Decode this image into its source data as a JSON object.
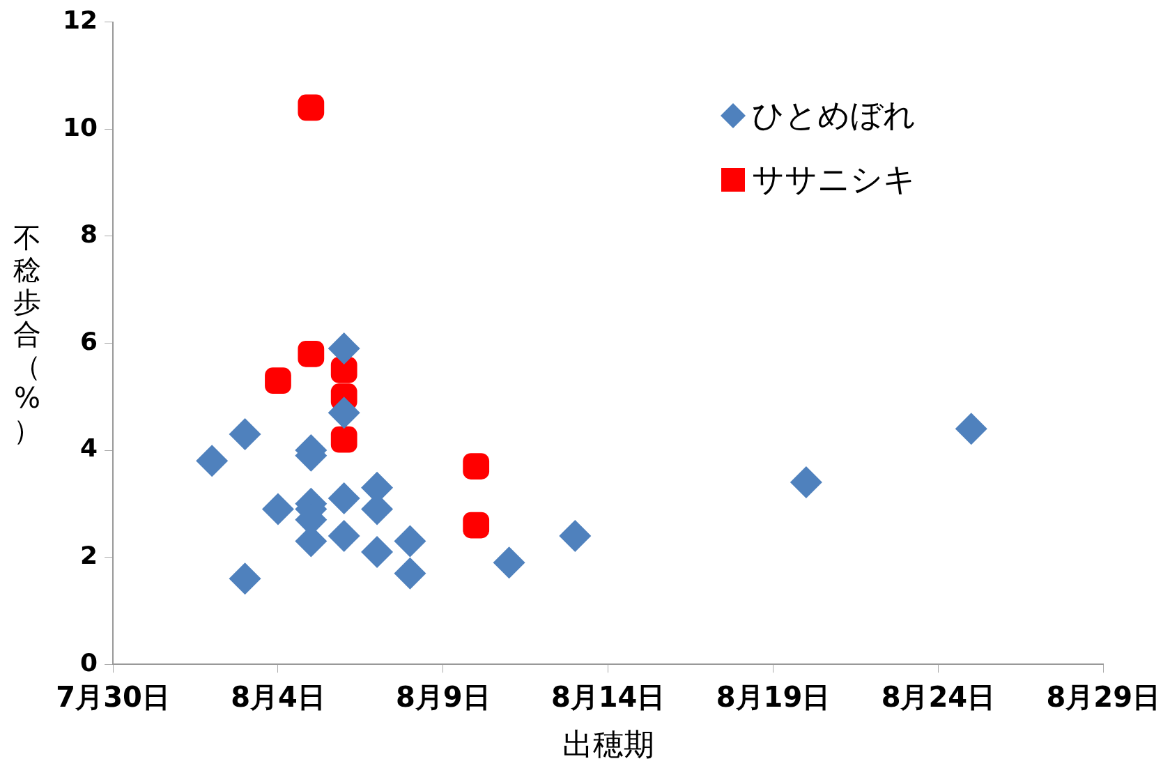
{
  "chart_data": {
    "type": "scatter",
    "xlabel": "出穂期",
    "ylabel": "不稔歩合（%）",
    "xlim": [
      "--07-30",
      "--08-29"
    ],
    "xticks": [
      {
        "value": "--07-30",
        "label": "7月30日"
      },
      {
        "value": "--08-04",
        "label": "8月4日"
      },
      {
        "value": "--08-09",
        "label": "8月9日"
      },
      {
        "value": "--08-14",
        "label": "8月14日"
      },
      {
        "value": "--08-19",
        "label": "8月19日"
      },
      {
        "value": "--08-24",
        "label": "8月24日"
      },
      {
        "value": "--08-29",
        "label": "8月29日"
      }
    ],
    "ylim": [
      0,
      12
    ],
    "yticks": [
      0,
      2,
      4,
      6,
      8,
      10,
      12
    ],
    "grid": false,
    "legend": "top right",
    "series": [
      {
        "name": "ひとめぼれ",
        "color": "#4f81bd",
        "marker": "diamond",
        "x": [
          "--08-02",
          "--08-03",
          "--08-03",
          "--08-04",
          "--08-05",
          "--08-05",
          "--08-05",
          "--08-05",
          "--08-05",
          "--08-05",
          "--08-06",
          "--08-06",
          "--08-06",
          "--08-06",
          "--08-07",
          "--08-07",
          "--08-07",
          "--08-08",
          "--08-08",
          "--08-11",
          "--08-13",
          "--08-20",
          "--08-25"
        ],
        "values": [
          3.8,
          4.3,
          1.6,
          2.9,
          4.0,
          3.9,
          3.0,
          2.9,
          2.7,
          2.3,
          5.9,
          4.7,
          3.1,
          2.4,
          3.3,
          2.9,
          2.1,
          2.3,
          1.7,
          1.9,
          2.4,
          3.4,
          4.4
        ]
      },
      {
        "name": "ササニシキ",
        "color": "#ff0000",
        "marker": "square",
        "x": [
          "--08-04",
          "--08-05",
          "--08-05",
          "--08-06",
          "--08-06",
          "--08-06",
          "--08-10",
          "--08-10"
        ],
        "values": [
          5.3,
          10.4,
          5.8,
          5.5,
          5.0,
          4.2,
          3.7,
          2.6
        ]
      }
    ]
  }
}
